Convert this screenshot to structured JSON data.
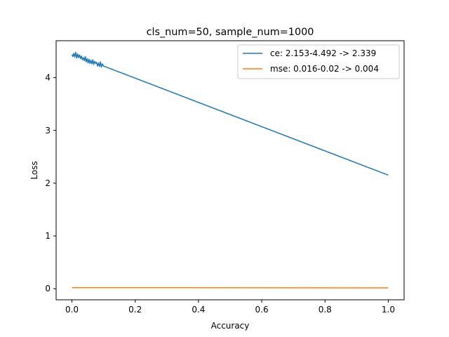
{
  "chart_data": {
    "type": "line",
    "title": "cls_num=50, sample_num=1000",
    "xlabel": "Accuracy",
    "ylabel": "Loss",
    "xlim": [
      -0.05,
      1.05
    ],
    "ylim": [
      -0.21,
      4.7
    ],
    "xticks": [
      0.0,
      0.2,
      0.4,
      0.6,
      0.8,
      1.0
    ],
    "xtick_labels": [
      "0.0",
      "0.2",
      "0.4",
      "0.6",
      "0.8",
      "1.0"
    ],
    "yticks": [
      0,
      1,
      2,
      3,
      4
    ],
    "ytick_labels": [
      "0",
      "1",
      "2",
      "3",
      "4"
    ],
    "grid": false,
    "legend_position": "top-right",
    "series": [
      {
        "name": "ce: 2.153-4.492 -> 2.339",
        "color": "#1f77b4",
        "x": [
          0.0,
          0.003,
          0.006,
          0.009,
          0.012,
          0.015,
          0.018,
          0.021,
          0.024,
          0.027,
          0.03,
          0.033,
          0.036,
          0.039,
          0.042,
          0.045,
          0.048,
          0.051,
          0.054,
          0.057,
          0.06,
          0.063,
          0.066,
          0.069,
          0.072,
          0.075,
          0.078,
          0.081,
          0.084,
          0.087,
          0.09,
          0.093,
          0.096,
          0.1,
          1.0
        ],
        "y": [
          4.44,
          4.4,
          4.46,
          4.39,
          4.48,
          4.37,
          4.45,
          4.38,
          4.43,
          4.36,
          4.41,
          4.34,
          4.38,
          4.32,
          4.4,
          4.3,
          4.36,
          4.28,
          4.35,
          4.27,
          4.33,
          4.26,
          4.34,
          4.25,
          4.31,
          4.27,
          4.29,
          4.22,
          4.28,
          4.21,
          4.3,
          4.2,
          4.26,
          4.22,
          2.153
        ]
      },
      {
        "name": "mse: 0.016-0.02 -> 0.004",
        "color": "#ff7f0e",
        "x": [
          0.0,
          0.1,
          1.0
        ],
        "y": [
          0.02,
          0.02,
          0.016
        ]
      }
    ]
  }
}
